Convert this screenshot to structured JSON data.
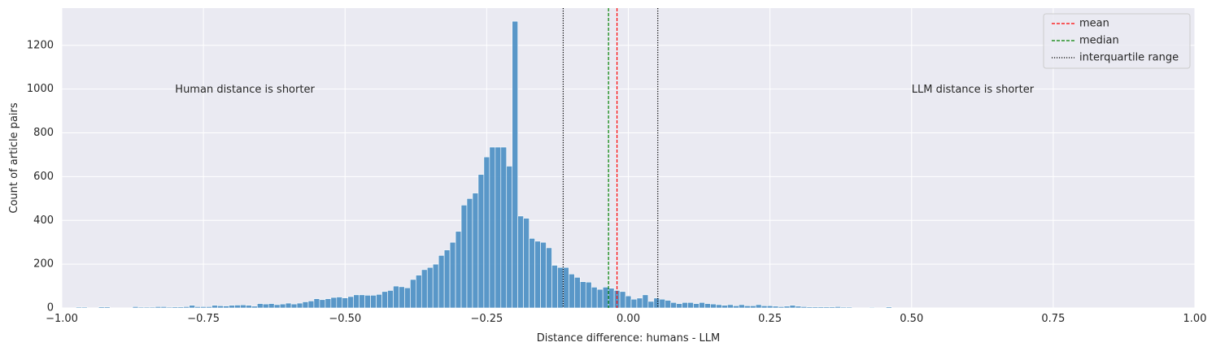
{
  "chart_data": {
    "type": "bar",
    "title": "",
    "xlabel": "Distance difference: humans - LLM",
    "ylabel": "Count of article pairs",
    "xlim": [
      -1.0,
      1.0
    ],
    "ylim": [
      0,
      1370
    ],
    "xticks": [
      -1.0,
      -0.75,
      -0.5,
      -0.25,
      0.0,
      0.25,
      0.5,
      0.75,
      1.0
    ],
    "xtick_labels": [
      "−1.00",
      "−0.75",
      "−0.50",
      "−0.25",
      "0.00",
      "0.25",
      "0.50",
      "0.75",
      "1.00"
    ],
    "yticks": [
      0,
      200,
      400,
      600,
      800,
      1000,
      1200
    ],
    "ytick_labels": [
      "0",
      "200",
      "400",
      "600",
      "800",
      "1000",
      "1200"
    ],
    "grid": true,
    "background": "#eaeaf2",
    "bar_color": "#4c8fc4",
    "bin_start": -0.975,
    "bin_width": 0.01,
    "counts": [
      4,
      4,
      0,
      0,
      5,
      5,
      0,
      0,
      0,
      0,
      6,
      4,
      4,
      4,
      6,
      6,
      4,
      5,
      5,
      6,
      12,
      6,
      6,
      6,
      12,
      10,
      9,
      12,
      13,
      14,
      12,
      8,
      20,
      18,
      20,
      15,
      18,
      22,
      18,
      22,
      28,
      32,
      42,
      38,
      42,
      48,
      50,
      46,
      52,
      60,
      60,
      58,
      58,
      62,
      75,
      80,
      100,
      97,
      92,
      130,
      150,
      175,
      185,
      200,
      240,
      265,
      300,
      350,
      470,
      500,
      525,
      610,
      690,
      735,
      735,
      735,
      648,
      1310,
      420,
      410,
      318,
      305,
      300,
      275,
      195,
      185,
      185,
      155,
      140,
      120,
      118,
      95,
      85,
      95,
      90,
      80,
      75,
      55,
      40,
      45,
      60,
      30,
      45,
      40,
      35,
      25,
      20,
      25,
      25,
      20,
      25,
      20,
      18,
      15,
      12,
      15,
      10,
      15,
      10,
      10,
      15,
      10,
      10,
      8,
      6,
      8,
      12,
      8,
      6,
      5,
      5,
      5,
      5,
      5,
      6,
      4,
      4,
      0,
      0,
      0,
      3,
      0,
      0,
      5,
      0,
      0,
      0,
      0,
      0,
      0,
      0,
      0,
      0,
      0,
      0,
      0,
      0,
      0,
      0,
      0,
      0,
      0,
      0,
      0,
      0,
      0,
      0,
      0,
      0,
      0,
      0,
      0,
      0,
      0,
      0,
      0,
      0,
      0,
      0,
      0,
      0,
      0,
      0,
      0,
      0,
      0,
      0,
      0,
      0,
      0,
      0,
      0,
      0,
      0,
      0
    ],
    "reference_lines": [
      {
        "name": "mean",
        "x": -0.02,
        "color": "#ff0000",
        "style": "dashed"
      },
      {
        "name": "median",
        "x": -0.035,
        "color": "#008000",
        "style": "dashed"
      },
      {
        "name": "interquartile range",
        "x": -0.115,
        "color": "#000000",
        "style": "dotted"
      },
      {
        "name": "interquartile range",
        "x": 0.052,
        "color": "#000000",
        "style": "dotted"
      }
    ],
    "legend": {
      "placement": "top-right",
      "entries": [
        {
          "label": "mean",
          "color": "#ff0000",
          "style": "dashed"
        },
        {
          "label": "median",
          "color": "#008000",
          "style": "dashed"
        },
        {
          "label": "interquartile range",
          "color": "#000000",
          "style": "dotted"
        }
      ]
    },
    "annotations": [
      {
        "text": "Human distance is shorter",
        "x": -0.8,
        "y": 1000
      },
      {
        "text": "LLM distance is shorter",
        "x": 0.5,
        "y": 1000
      }
    ]
  }
}
